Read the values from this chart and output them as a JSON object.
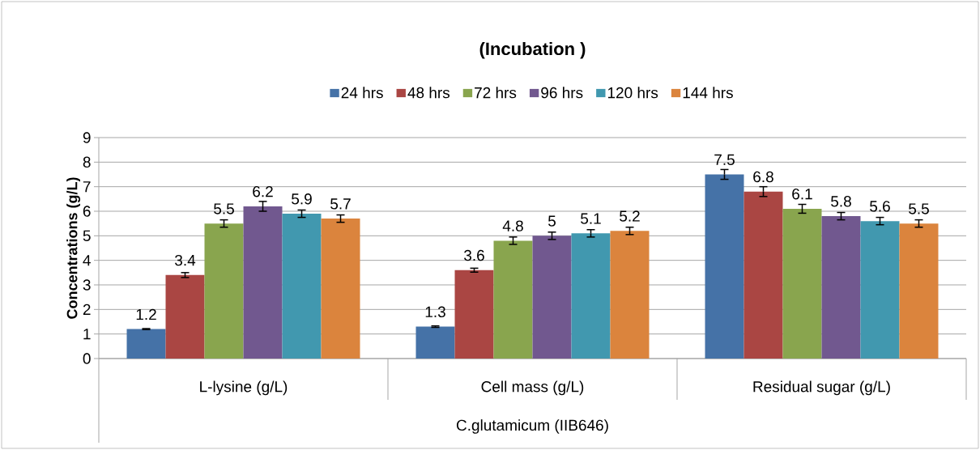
{
  "chart_data": {
    "type": "bar",
    "title": "(Incubation )",
    "xlabel": "C.glutamicum (IIB646)",
    "ylabel": "Concentrations (g/L)",
    "categories": [
      "L-lysine (g/L)",
      "Cell mass (g/L)",
      "Residual sugar (g/L)"
    ],
    "series": [
      {
        "name": "24 hrs",
        "color": "#4572a7",
        "values": [
          1.2,
          1.3,
          7.5
        ],
        "errors": [
          0.02,
          0.03,
          0.2
        ]
      },
      {
        "name": "48 hrs",
        "color": "#aa4643",
        "values": [
          3.4,
          3.6,
          6.8
        ],
        "errors": [
          0.1,
          0.08,
          0.2
        ]
      },
      {
        "name": "72 hrs",
        "color": "#89a54e",
        "values": [
          5.5,
          4.8,
          6.1
        ],
        "errors": [
          0.15,
          0.15,
          0.18
        ]
      },
      {
        "name": "96 hrs",
        "color": "#71588f",
        "values": [
          6.2,
          5,
          5.8
        ],
        "errors": [
          0.2,
          0.15,
          0.15
        ]
      },
      {
        "name": "120 hrs",
        "color": "#4198af",
        "values": [
          5.9,
          5.1,
          5.6
        ],
        "errors": [
          0.15,
          0.15,
          0.15
        ]
      },
      {
        "name": "144 hrs",
        "color": "#db843d",
        "values": [
          5.7,
          5.2,
          5.5
        ],
        "errors": [
          0.15,
          0.15,
          0.15
        ]
      }
    ],
    "ylim": [
      0,
      9
    ],
    "yticks": [
      0,
      1,
      2,
      3,
      4,
      5,
      6,
      7,
      8,
      9
    ],
    "grid": "y",
    "legend": "top",
    "data_labels": true
  }
}
